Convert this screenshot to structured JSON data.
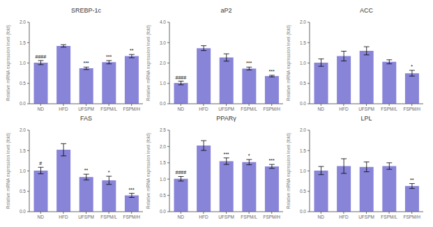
{
  "chart_data": [
    {
      "type": "bar",
      "title": "SREBP-1c",
      "categories": [
        "ND",
        "HFD",
        "UFSPM",
        "FSPM/L",
        "FSPM/H"
      ],
      "values": [
        1.01,
        1.42,
        0.87,
        1.02,
        1.17
      ],
      "errors": [
        0.05,
        0.03,
        0.03,
        0.04,
        0.04
      ],
      "ylabel": "Relative mRNA expression level (fold)",
      "ylim": [
        0,
        2.0
      ],
      "yticks": [
        {
          "value": 0,
          "label": "0.0"
        },
        0.5,
        {
          "value": 1,
          "label": "1.0"
        },
        1.5,
        {
          "value": 2,
          "label": "2.0"
        }
      ],
      "annotations": [
        {
          "text": "####",
          "category": "ND"
        },
        {
          "text": "***",
          "category": "UFSPM"
        },
        {
          "text": "***",
          "category": "FSPM/L"
        },
        {
          "text": "**",
          "category": "FSPM/H"
        }
      ]
    },
    {
      "type": "bar",
      "title": "aP2",
      "categories": [
        "ND",
        "HFD",
        "UFSPM",
        "FSPM/L",
        "FSPM/H"
      ],
      "values": [
        1.02,
        2.73,
        2.27,
        1.73,
        1.36
      ],
      "errors": [
        0.09,
        0.12,
        0.18,
        0.07,
        0.04
      ],
      "ylabel": "Relative mRNA expression level (fold)",
      "ylim": [
        0,
        4.0
      ],
      "yticks": [
        {
          "value": 0,
          "label": "0.0"
        },
        {
          "value": 1,
          "label": "1.0"
        },
        {
          "value": 2,
          "label": "2.0"
        },
        {
          "value": 3,
          "label": "3.0"
        },
        {
          "value": 4,
          "label": "4.0"
        }
      ],
      "annotations": [
        {
          "text": "####",
          "category": "ND"
        },
        {
          "text": "***",
          "category": "FSPM/L"
        },
        {
          "text": "***",
          "category": "FSPM/H"
        }
      ]
    },
    {
      "type": "bar",
      "title": "ACC",
      "categories": [
        "ND",
        "HFD",
        "UFSPM",
        "FSPM/L",
        "FSPM/H"
      ],
      "values": [
        1.01,
        1.17,
        1.3,
        1.03,
        0.75
      ],
      "errors": [
        0.09,
        0.12,
        0.1,
        0.05,
        0.07
      ],
      "ylabel": "Relative mRNA expression level (fold)",
      "ylim": [
        0,
        2.0
      ],
      "yticks": [
        {
          "value": 0,
          "label": "0.0"
        },
        0.5,
        {
          "value": 1,
          "label": "1.0"
        },
        1.5,
        {
          "value": 2,
          "label": "2.0"
        }
      ],
      "annotations": [
        {
          "text": "*",
          "category": "FSPM/H"
        }
      ]
    },
    {
      "type": "bar",
      "title": "FAS",
      "categories": [
        "ND",
        "HFD",
        "UFSPM",
        "FSPM/L",
        "FSPM/H"
      ],
      "values": [
        1.01,
        1.52,
        0.85,
        0.77,
        0.4
      ],
      "errors": [
        0.08,
        0.15,
        0.07,
        0.1,
        0.05
      ],
      "ylabel": "Relative mRNA expression level (fold)",
      "ylim": [
        0,
        2.0
      ],
      "yticks": [
        {
          "value": 0,
          "label": "0.0"
        },
        0.5,
        {
          "value": 1,
          "label": "1.0"
        },
        1.5,
        {
          "value": 2,
          "label": "2.0"
        }
      ],
      "annotations": [
        {
          "text": "#",
          "category": "ND"
        },
        {
          "text": "**",
          "category": "UFSPM"
        },
        {
          "text": "*",
          "category": "FSPM/L"
        },
        {
          "text": "***",
          "category": "FSPM/H"
        }
      ]
    },
    {
      "type": "bar",
      "title": "PPARγ",
      "categories": [
        "ND",
        "HFD",
        "UFSPM",
        "FSPM/L",
        "FSPM/H"
      ],
      "values": [
        1.01,
        2.03,
        1.55,
        1.52,
        1.39
      ],
      "errors": [
        0.07,
        0.15,
        0.1,
        0.08,
        0.06
      ],
      "ylabel": "Relative mRNA expression level (fold)",
      "ylim": [
        0,
        2.5
      ],
      "yticks": [
        {
          "value": 0,
          "label": "0.0"
        },
        0.5,
        {
          "value": 1,
          "label": "1.0"
        },
        1.5,
        {
          "value": 2,
          "label": "2.0"
        },
        2.5
      ],
      "annotations": [
        {
          "text": "####",
          "category": "ND"
        },
        {
          "text": "***",
          "category": "UFSPM"
        },
        {
          "text": "*",
          "category": "FSPM/L"
        },
        {
          "text": "***",
          "category": "FSPM/H"
        }
      ]
    },
    {
      "type": "bar",
      "title": "LPL",
      "categories": [
        "ND",
        "HFD",
        "UFSPM",
        "FSPM/L",
        "FSPM/H"
      ],
      "values": [
        1.01,
        1.12,
        1.1,
        1.12,
        0.63
      ],
      "errors": [
        0.1,
        0.18,
        0.12,
        0.08,
        0.06
      ],
      "ylabel": "Relative mRNA expression level (fold)",
      "ylim": [
        0,
        2.0
      ],
      "yticks": [
        {
          "value": 0,
          "label": "0.0"
        },
        0.5,
        {
          "value": 1,
          "label": "1.0"
        },
        1.5,
        {
          "value": 2,
          "label": "2.0"
        }
      ],
      "annotations": [
        {
          "text": "**",
          "category": "FSPM/H"
        }
      ]
    }
  ]
}
